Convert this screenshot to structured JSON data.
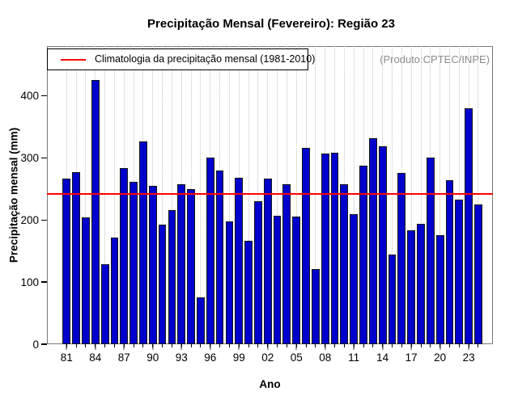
{
  "title": "Precipitação Mensal (Fevereiro): Região 23",
  "annotation": "(Produto:CPTEC/INPE)",
  "legend": {
    "label": "Climatologia da precipitação mensal (1981-2010)",
    "line_color": "#ff0000"
  },
  "colors": {
    "bar_fill": "#0000cc",
    "bar_border": "#151515",
    "climatology_line": "#ff0000",
    "grid": "#c4c4c4",
    "box": "#7a7a7a",
    "annotation_text": "#8c8c8c"
  },
  "chart_data": {
    "type": "bar",
    "title": "Precipitação Mensal (Fevereiro): Região 23",
    "xlabel": "Ano",
    "ylabel": "Precipitação mensal (mm)",
    "years": [
      1981,
      1982,
      1983,
      1984,
      1985,
      1986,
      1987,
      1988,
      1989,
      1990,
      1991,
      1992,
      1993,
      1994,
      1995,
      1996,
      1997,
      1998,
      1999,
      2000,
      2001,
      2002,
      2003,
      2004,
      2005,
      2006,
      2007,
      2008,
      2009,
      2010,
      2011,
      2012,
      2013,
      2014,
      2015,
      2016,
      2017,
      2018,
      2019,
      2020,
      2021,
      2022,
      2023,
      2024
    ],
    "values": [
      267,
      277,
      204,
      426,
      129,
      172,
      284,
      262,
      326,
      255,
      192,
      216,
      258,
      250,
      75,
      300,
      280,
      198,
      268,
      167,
      230,
      267,
      207,
      257,
      205,
      316,
      121,
      307,
      308,
      258,
      210,
      287,
      332,
      319,
      144,
      276,
      183,
      194,
      300,
      176,
      264,
      233,
      380,
      225
    ],
    "x_tick_labels": [
      "81",
      "84",
      "87",
      "90",
      "93",
      "96",
      "99",
      "02",
      "05",
      "08",
      "11",
      "14",
      "17",
      "20",
      "23"
    ],
    "x_label_every": 3,
    "y_ticks": [
      0,
      100,
      200,
      300,
      400
    ],
    "ylim": [
      0,
      480
    ],
    "climatology_value": 242,
    "grid": "vertical-dotted",
    "legend_position": "top-left"
  }
}
